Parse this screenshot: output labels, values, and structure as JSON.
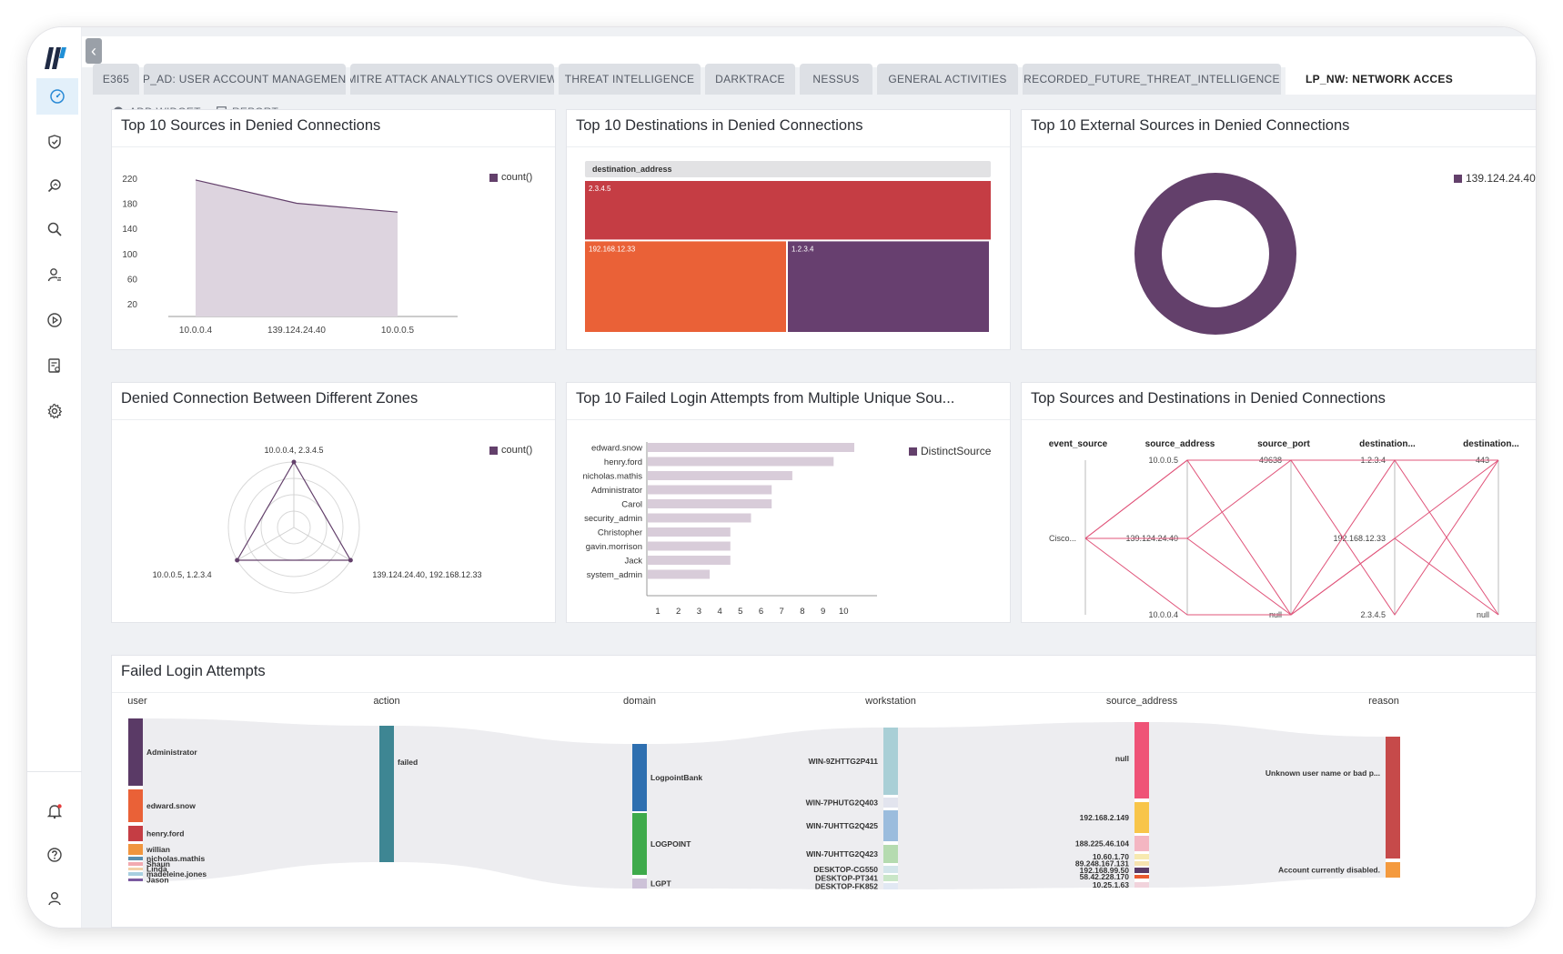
{
  "tabs": [
    {
      "label": "E365"
    },
    {
      "label": "LP_AD: USER ACCOUNT MANAGEMENT"
    },
    {
      "label": "MITRE ATTACK ANALYTICS OVERVIEW"
    },
    {
      "label": "THREAT INTELLIGENCE"
    },
    {
      "label": "DARKTRACE"
    },
    {
      "label": "NESSUS"
    },
    {
      "label": "GENERAL ACTIVITIES"
    },
    {
      "label": "RECORDED_FUTURE_THREAT_INTELLIGENCE"
    },
    {
      "label": "LP_NW: NETWORK ACCES"
    }
  ],
  "toolbar": {
    "add_widget": "ADD WIDGET",
    "report": "REPORT"
  },
  "sidebar": {
    "icons": [
      "dashboard-icon",
      "shield-icon",
      "search-analytics-icon",
      "search-icon",
      "user-settings-icon",
      "play-icon",
      "report-icon",
      "gear-icon"
    ],
    "bottom_icons": [
      "bell-icon",
      "help-icon",
      "user-icon"
    ]
  },
  "colors": {
    "accent": "#63406b",
    "area_fill": "#ddd4df",
    "treemap_red": "#c53d44",
    "treemap_orange": "#ea6137",
    "treemap_purple": "#673f6f",
    "parallel_line": "#e0547a",
    "bar_fill": "#d8ccd9"
  },
  "widgets": {
    "w1": {
      "title": "Top 10 Sources in Denied Connections",
      "legend": "count()"
    },
    "w2": {
      "title": "Top 10 Destinations in Denied Connections",
      "header": "destination_address"
    },
    "w3": {
      "title": "Top 10 External Sources in Denied Connections",
      "legend": "139.124.24.40"
    },
    "w4": {
      "title": "Denied Connection Between Different Zones",
      "legend": "count()"
    },
    "w5": {
      "title": "Top 10 Failed Login Attempts from Multiple Unique Sou...",
      "legend": "DistinctSource"
    },
    "w6": {
      "title": "Top Sources and Destinations in Denied Connections"
    },
    "w7": {
      "title": "Failed Login Attempts"
    }
  },
  "chart_data": [
    {
      "type": "area",
      "categories": [
        "10.0.0.4",
        "139.124.24.40",
        "10.0.0.5"
      ],
      "values": [
        217,
        180,
        166
      ],
      "ylim": [
        0,
        240
      ],
      "yticks": [
        20,
        60,
        100,
        140,
        180,
        220
      ],
      "legend": "count()"
    },
    {
      "type": "treemap",
      "header": "destination_address",
      "items": [
        {
          "label": "2.3.4.5",
          "value": 4,
          "color": "#c53d44"
        },
        {
          "label": "192.168.12.33",
          "value": 3,
          "color": "#ea6137"
        },
        {
          "label": "1.2.3.4",
          "value": 3,
          "color": "#673f6f"
        }
      ]
    },
    {
      "type": "pie",
      "slices": [
        {
          "label": "139.124.24.40",
          "value": 1,
          "color": "#63406b"
        }
      ],
      "donut": true
    },
    {
      "type": "radar",
      "axes": [
        "10.0.0.4, 2.3.4.5",
        "139.124.24.40, 192.168.12.33",
        "10.0.0.5, 1.2.3.4"
      ],
      "values": [
        1,
        1,
        1
      ],
      "legend": "count()"
    },
    {
      "type": "bar",
      "orientation": "horizontal",
      "categories": [
        "edward.snow",
        "henry.ford",
        "nicholas.mathis",
        "Administrator",
        "Carol",
        "security_admin",
        "Christopher",
        "gavin.morrison",
        "Jack",
        "system_admin"
      ],
      "values": [
        10,
        9,
        7,
        6,
        6,
        5,
        4,
        4,
        4,
        3
      ],
      "xticks": [
        1,
        2,
        3,
        4,
        5,
        6,
        7,
        8,
        9,
        10
      ],
      "legend": "DistinctSource"
    },
    {
      "type": "parallel",
      "dimensions": [
        {
          "name": "event_source",
          "ticks": [
            "Cisco..."
          ]
        },
        {
          "name": "source_address",
          "ticks": [
            "10.0.0.5",
            "139.124.24.40",
            "10.0.0.4"
          ]
        },
        {
          "name": "source_port",
          "ticks": [
            "49638",
            "null"
          ]
        },
        {
          "name": "destination...",
          "ticks": [
            "1.2.3.4",
            "192.168.12.33",
            "2.3.4.5"
          ]
        },
        {
          "name": "destination...",
          "ticks": [
            "443",
            "null"
          ]
        }
      ]
    },
    {
      "type": "sankey",
      "columns": [
        {
          "name": "user",
          "nodes": [
            "Administrator",
            "edward.snow",
            "henry.ford",
            "willian",
            "nicholas.mathis",
            "Shaun",
            "Linda",
            "madeleine.jones",
            "Jason"
          ]
        },
        {
          "name": "action",
          "nodes": [
            "failed"
          ]
        },
        {
          "name": "domain",
          "nodes": [
            "LogpointBank",
            "LOGPOINT",
            "LGPT"
          ]
        },
        {
          "name": "workstation",
          "nodes": [
            "WIN-9ZHTTG2P411",
            "WIN-7PHUTG2Q403",
            "WIN-7UHTTG2Q425",
            "WIN-7UHTTG2Q423",
            "DESKTOP-CG550",
            "DESKTOP-PT341",
            "DESKTOP-FK852"
          ]
        },
        {
          "name": "source_address",
          "nodes": [
            "null",
            "192.168.2.149",
            "188.225.46.104",
            "10.60.1.70",
            "89.248.167.131",
            "192.168.99.50",
            "58.42.228.170",
            "10.25.1.63"
          ]
        },
        {
          "name": "reason",
          "nodes": [
            "Unknown user name or bad p...",
            "Account currently disabled."
          ]
        }
      ]
    }
  ]
}
